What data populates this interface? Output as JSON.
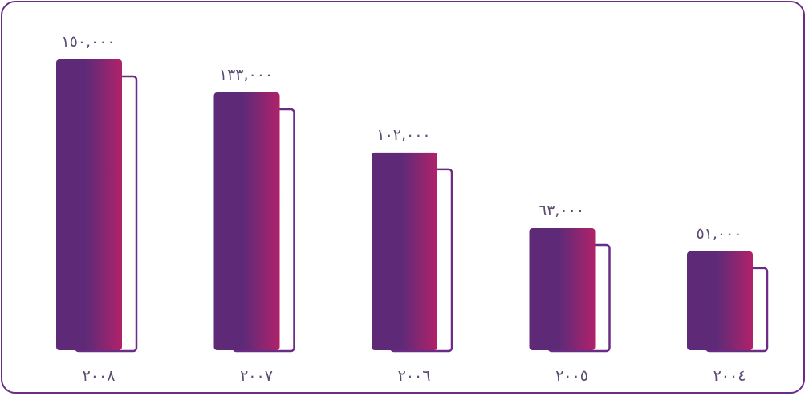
{
  "colors": {
    "frame": "#6b2c86",
    "bar_gradient_start": "#5e2a78",
    "bar_gradient_end": "#b0226a",
    "shadow_outline": "#6b2c86",
    "text": "#5b4a70"
  },
  "chart_data": {
    "type": "bar",
    "categories": [
      "٢٠٠٨",
      "٢٠٠٧",
      "٢٠٠٦",
      "٢٠٠٥",
      "٢٠٠٤"
    ],
    "values": [
      150000,
      133000,
      102000,
      63000,
      51000
    ],
    "value_labels": [
      "١٥٠,٠٠٠",
      "١٣٣,٠٠٠",
      "١٠٢,٠٠٠",
      "٦٣,٠٠٠",
      "٥١,٠٠٠"
    ],
    "ylim": [
      0,
      150000
    ],
    "grid": false,
    "legend": "none"
  }
}
